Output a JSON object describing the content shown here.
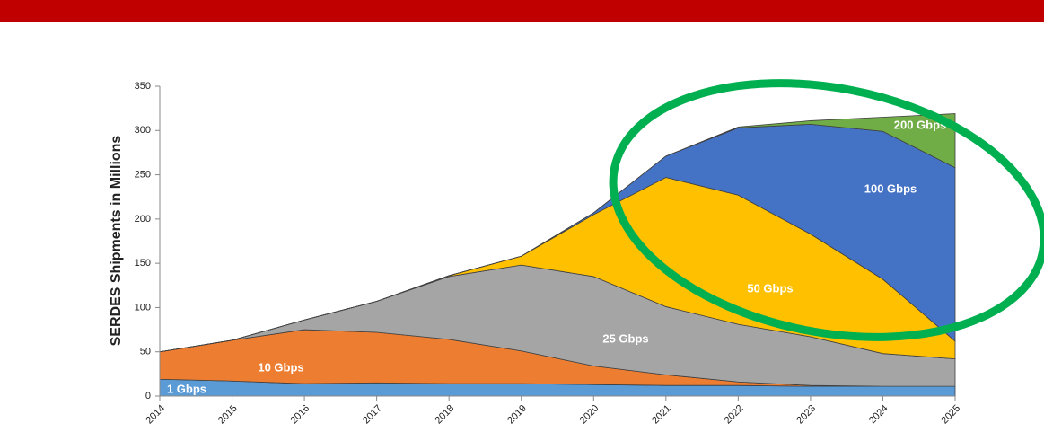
{
  "chart_data": {
    "type": "stacked-area",
    "y_label": "SERDES Shipments in Millions",
    "categories": [
      "2014",
      "2015",
      "2016",
      "2017",
      "2018",
      "2019",
      "2020",
      "2021",
      "2022",
      "2023",
      "2024",
      "2025"
    ],
    "series": [
      {
        "name": "1 Gbps",
        "color": "#5b9bd5",
        "values": [
          19,
          17,
          14,
          15,
          14,
          14,
          13,
          12,
          12,
          11,
          11,
          11
        ]
      },
      {
        "name": "10 Gbps",
        "color": "#ed7d31",
        "values": [
          31,
          46,
          61,
          57,
          50,
          37,
          21,
          12,
          4,
          1,
          0,
          0
        ]
      },
      {
        "name": "25 Gbps",
        "color": "#a5a5a5",
        "values": [
          0,
          0,
          11,
          35,
          71,
          97,
          101,
          77,
          65,
          55,
          37,
          31
        ]
      },
      {
        "name": "50 Gbps",
        "color": "#ffc000",
        "values": [
          0,
          0,
          0,
          0,
          1,
          10,
          70,
          146,
          146,
          116,
          84,
          20
        ]
      },
      {
        "name": "100 Gbps",
        "color": "#4472c4",
        "values": [
          0,
          0,
          0,
          0,
          0,
          0,
          2,
          24,
          76,
          124,
          167,
          196
        ]
      },
      {
        "name": "200 Gbps",
        "color": "#70ad47",
        "values": [
          0,
          0,
          0,
          0,
          0,
          0,
          0,
          0,
          1,
          4,
          16,
          61
        ]
      }
    ],
    "ylim": [
      0,
      350
    ],
    "yticks": [
      0,
      50,
      100,
      150,
      200,
      250,
      300,
      350
    ]
  }
}
